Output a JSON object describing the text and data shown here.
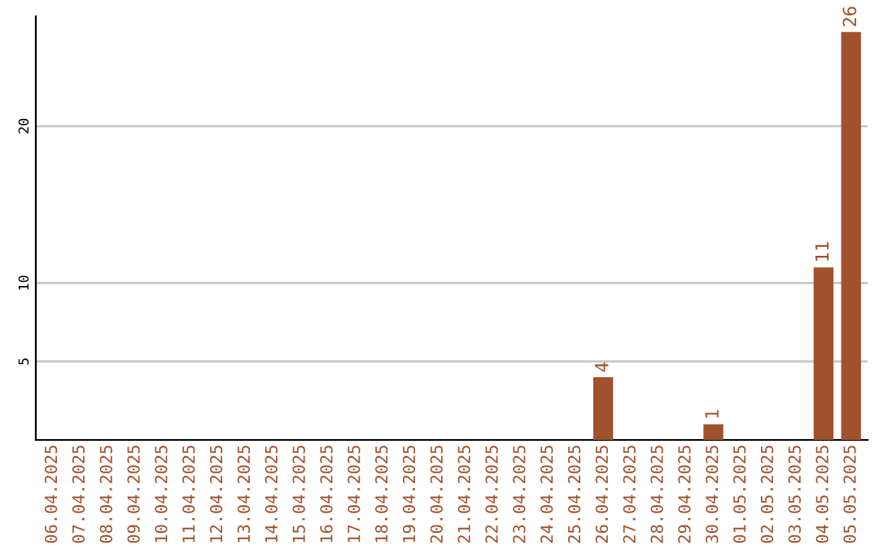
{
  "chart_data": {
    "type": "bar",
    "categories": [
      "06.04.2025",
      "07.04.2025",
      "08.04.2025",
      "09.04.2025",
      "10.04.2025",
      "11.04.2025",
      "12.04.2025",
      "13.04.2025",
      "14.04.2025",
      "15.04.2025",
      "16.04.2025",
      "17.04.2025",
      "18.04.2025",
      "19.04.2025",
      "20.04.2025",
      "21.04.2025",
      "22.04.2025",
      "23.04.2025",
      "24.04.2025",
      "25.04.2025",
      "26.04.2025",
      "27.04.2025",
      "28.04.2025",
      "29.04.2025",
      "30.04.2025",
      "01.05.2025",
      "02.05.2025",
      "03.05.2025",
      "04.05.2025",
      "05.05.2025"
    ],
    "values": [
      0,
      0,
      0,
      0,
      0,
      0,
      0,
      0,
      0,
      0,
      0,
      0,
      0,
      0,
      0,
      0,
      0,
      0,
      0,
      0,
      4,
      0,
      0,
      0,
      1,
      0,
      0,
      0,
      11,
      26
    ],
    "value_labels": [
      null,
      null,
      null,
      null,
      null,
      null,
      null,
      null,
      null,
      null,
      null,
      null,
      null,
      null,
      null,
      null,
      null,
      null,
      null,
      null,
      "4",
      null,
      null,
      null,
      "1",
      null,
      null,
      null,
      "11",
      "26"
    ],
    "color": "#a0522d",
    "ylim": [
      0,
      27
    ],
    "yticks": [
      5,
      10,
      20
    ],
    "grid": "y"
  }
}
